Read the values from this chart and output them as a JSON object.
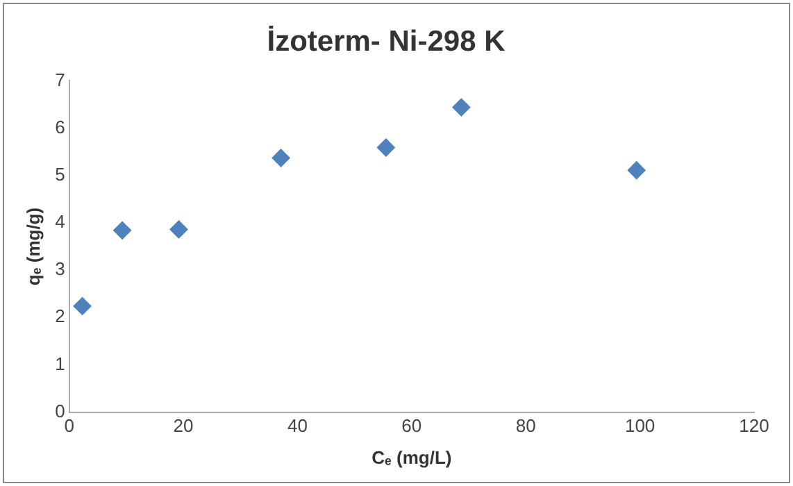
{
  "chart_data": {
    "type": "scatter",
    "title": "İzoterm- Ni-298 K",
    "xlabel": "Cₑ (mg/L)",
    "ylabel": "qₑ (mg/g)",
    "x": [
      2.3,
      9.3,
      19.2,
      37.1,
      55.5,
      68.7,
      99.4
    ],
    "series": [
      {
        "color": "#4f81bd",
        "values": [
          2.24,
          3.84,
          3.86,
          5.37,
          5.59,
          6.44,
          5.11
        ]
      }
    ],
    "xlim": [
      0,
      120
    ],
    "xticks": [
      0,
      20,
      40,
      60,
      80,
      100,
      120
    ],
    "ylim": [
      0,
      7
    ],
    "yticks": [
      0,
      1,
      2,
      3,
      4,
      5,
      6,
      7
    ],
    "grid": false,
    "legend": false,
    "marker": "diamond"
  }
}
